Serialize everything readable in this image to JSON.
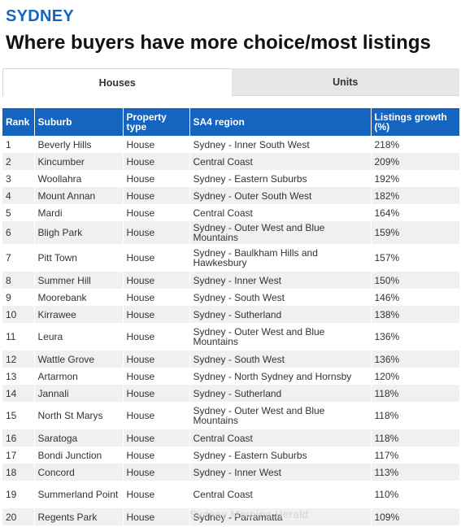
{
  "kicker": "SYDNEY",
  "headline": "Where buyers have more choice/most listings",
  "tabs": [
    "Houses",
    "Units"
  ],
  "table": {
    "headers": [
      "Rank",
      "Suburb",
      "Property type",
      "SA4 region",
      "Listings growth (%)"
    ],
    "rows": [
      [
        "1",
        "Beverly Hills",
        "House",
        "Sydney - Inner South West",
        "218%"
      ],
      [
        "2",
        "Kincumber",
        "House",
        "Central Coast",
        "209%"
      ],
      [
        "3",
        "Woollahra",
        "House",
        "Sydney - Eastern Suburbs",
        "192%"
      ],
      [
        "4",
        "Mount Annan",
        "House",
        "Sydney - Outer South West",
        "182%"
      ],
      [
        "5",
        "Mardi",
        "House",
        "Central Coast",
        "164%"
      ],
      [
        "6",
        "Bligh Park",
        "House",
        "Sydney - Outer West and Blue Mountains",
        "159%"
      ],
      [
        "7",
        "Pitt Town",
        "House",
        "Sydney - Baulkham Hills and Hawkesbury",
        "157%"
      ],
      [
        "8",
        "Summer Hill",
        "House",
        "Sydney - Inner West",
        "150%"
      ],
      [
        "9",
        "Moorebank",
        "House",
        "Sydney - South West",
        "146%"
      ],
      [
        "10",
        "Kirrawee",
        "House",
        "Sydney - Sutherland",
        "138%"
      ],
      [
        "11",
        "Leura",
        "House",
        "Sydney - Outer West and Blue Mountains",
        "136%"
      ],
      [
        "12",
        "Wattle Grove",
        "House",
        "Sydney - South West",
        "136%"
      ],
      [
        "13",
        "Artarmon",
        "House",
        "Sydney - North Sydney and Hornsby",
        "120%"
      ],
      [
        "14",
        "Jannali",
        "House",
        "Sydney - Sutherland",
        "118%"
      ],
      [
        "15",
        "North St Marys",
        "House",
        "Sydney - Outer West and Blue Mountains",
        "118%"
      ],
      [
        "16",
        "Saratoga",
        "House",
        "Central Coast",
        "118%"
      ],
      [
        "17",
        "Bondi Junction",
        "House",
        "Sydney - Eastern Suburbs",
        "117%"
      ],
      [
        "18",
        "Concord",
        "House",
        "Sydney - Inner West",
        "113%"
      ],
      [
        "19",
        "Summerland Point",
        "House",
        "Central Coast",
        "110%"
      ],
      [
        "20",
        "Regents Park",
        "House",
        "Sydney - Parramatta",
        "109%"
      ]
    ]
  },
  "watermark": "Sydney Morning Herald",
  "colors": {
    "accent": "#1565c0",
    "header_text": "#ffffff",
    "stripe": "#f0f0f0"
  }
}
